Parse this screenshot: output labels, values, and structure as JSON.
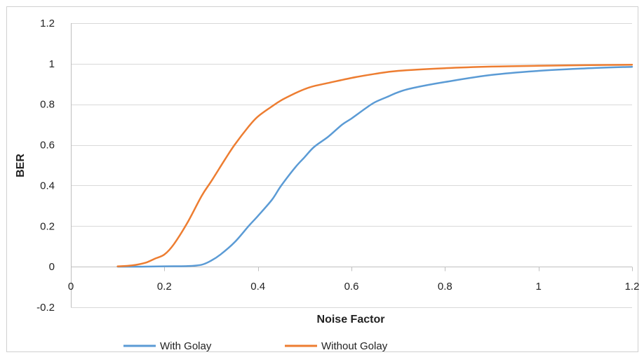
{
  "chart_data": {
    "type": "line",
    "title": "",
    "xlabel": "Noise Factor",
    "ylabel": "BER",
    "xlim": [
      0,
      1.2
    ],
    "ylim": [
      -0.2,
      1.2
    ],
    "x_ticks": [
      0,
      0.2,
      0.4,
      0.6,
      0.8,
      1,
      1.2
    ],
    "y_ticks": [
      -0.2,
      0,
      0.2,
      0.4,
      0.6,
      0.8,
      1,
      1.2
    ],
    "x_tick_labels": [
      "0",
      "0.2",
      "0.4",
      "0.6",
      "0.8",
      "1",
      "1.2"
    ],
    "y_tick_labels": [
      "-0.2",
      "0",
      "0.2",
      "0.4",
      "0.6",
      "0.8",
      "1",
      "1.2"
    ],
    "grid": "horizontal",
    "legend_position": "bottom",
    "series": [
      {
        "name": "With Golay",
        "color": "#5b9bd5",
        "x": [
          0.1,
          0.15,
          0.2,
          0.25,
          0.28,
          0.3,
          0.32,
          0.35,
          0.38,
          0.4,
          0.43,
          0.45,
          0.48,
          0.5,
          0.52,
          0.55,
          0.58,
          0.6,
          0.63,
          0.65,
          0.68,
          0.7,
          0.73,
          0.8,
          0.9,
          1.0,
          1.1,
          1.2
        ],
        "y": [
          0.0,
          0.0,
          0.002,
          0.003,
          0.01,
          0.03,
          0.06,
          0.12,
          0.2,
          0.25,
          0.33,
          0.4,
          0.49,
          0.54,
          0.59,
          0.64,
          0.7,
          0.73,
          0.78,
          0.81,
          0.84,
          0.86,
          0.88,
          0.91,
          0.945,
          0.965,
          0.977,
          0.985
        ]
      },
      {
        "name": "Without Golay",
        "color": "#ed7d31",
        "x": [
          0.1,
          0.13,
          0.16,
          0.18,
          0.2,
          0.22,
          0.25,
          0.28,
          0.3,
          0.33,
          0.35,
          0.38,
          0.4,
          0.43,
          0.45,
          0.48,
          0.5,
          0.52,
          0.55,
          0.6,
          0.65,
          0.7,
          0.8,
          0.9,
          1.0,
          1.1,
          1.2
        ],
        "y": [
          0.002,
          0.006,
          0.02,
          0.04,
          0.06,
          0.11,
          0.22,
          0.35,
          0.42,
          0.53,
          0.6,
          0.69,
          0.74,
          0.79,
          0.82,
          0.855,
          0.875,
          0.89,
          0.905,
          0.93,
          0.95,
          0.965,
          0.978,
          0.986,
          0.99,
          0.993,
          0.995
        ]
      }
    ]
  }
}
